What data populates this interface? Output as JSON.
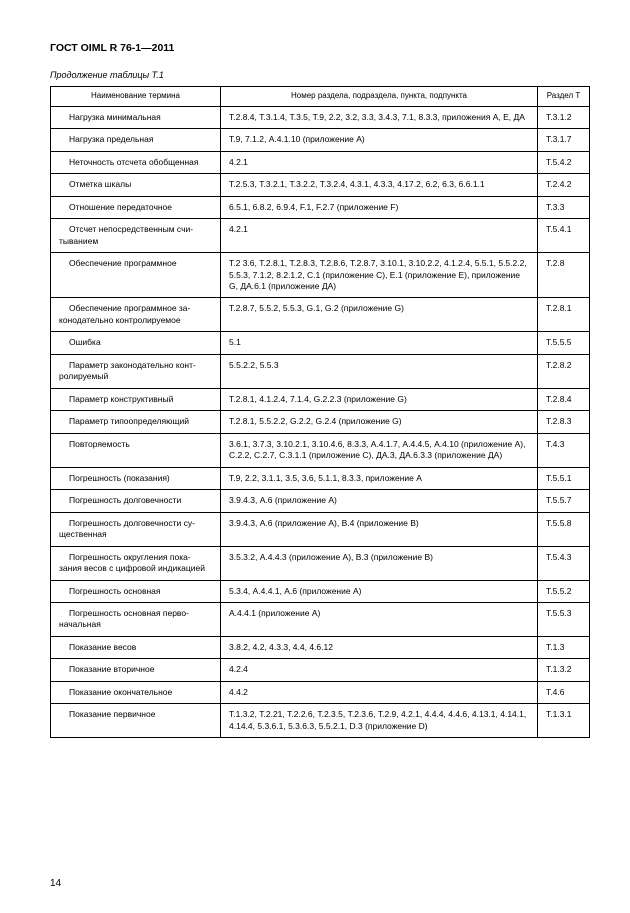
{
  "doc_title": "ГОСТ OIML R 76-1—2011",
  "table_caption": "Продолжение таблицы   Т.1",
  "headers": {
    "term": "Наименование термина",
    "ref": "Номер раздела, подраздела, пункта, подпункта",
    "sec": "Раздел Т"
  },
  "rows": [
    {
      "term_lines": [
        "Нагрузка минимальная"
      ],
      "ref": "Т.2.8.4, Т.3.1.4, Т.3.5, Т.9, 2.2, 3.2, 3.3, 3.4.3, 7.1, 8.3.3, приложения А, Е, ДА",
      "sec": "Т.3.1.2"
    },
    {
      "term_lines": [
        "Нагрузка предельная"
      ],
      "ref": "Т.9, 7.1.2, А.4.1.10 (приложение А)",
      "sec": "Т.3.1.7"
    },
    {
      "term_lines": [
        "Неточность отсчета обобщенная"
      ],
      "ref": "4.2.1",
      "sec": "Т.5.4.2"
    },
    {
      "term_lines": [
        "Отметка шкалы"
      ],
      "ref": "Т.2.5.3, Т.3.2.1, Т.3.2.2, Т.3.2.4, 4.3.1, 4.3.3, 4.17.2, 6.2, 6.3, 6.6.1.1",
      "sec": "Т.2.4.2"
    },
    {
      "term_lines": [
        "Отношение передаточное"
      ],
      "ref": "6.5.1, 6.8.2, 6.9.4,  F.1, F.2.7 (приложение F)",
      "sec": "Т.3.3"
    },
    {
      "term_lines": [
        "Отсчет непосредственным счи-",
        "тыванием"
      ],
      "ref": "4.2.1",
      "sec": "Т.5.4.1"
    },
    {
      "term_lines": [
        "Обеспечение программное"
      ],
      "ref": "Т.2 3.6, Т.2.8.1, Т.2.8.3, Т.2.8.6, Т.2.8.7, 3.10.1, 3.10.2.2, 4.1.2.4, 5.5.1, 5.5.2.2, 5.5.3, 7.1.2, 8.2.1.2, С.1 (приложение С), Е.1 (приложение Е), приложение G, ДА.6.1 (приложение ДА)",
      "sec": "Т.2.8"
    },
    {
      "term_lines": [
        "Обеспечение программное за-",
        "конодательно контролируемое"
      ],
      "ref": "Т.2.8.7, 5.5.2, 5.5.3, G.1, G.2 (приложение G)",
      "sec": "Т.2.8.1"
    },
    {
      "term_lines": [
        "Ошибка"
      ],
      "ref": "5.1",
      "sec": "Т.5.5.5"
    },
    {
      "term_lines": [
        "Параметр законодательно конт-",
        "ролируемый"
      ],
      "ref": "5.5.2.2, 5.5.3",
      "sec": "Т.2.8.2"
    },
    {
      "term_lines": [
        "Параметр конструктивный"
      ],
      "ref": "Т.2.8.1, 4.1.2.4, 7.1.4, G.2.2.3 (приложение G)",
      "sec": "Т.2.8.4"
    },
    {
      "term_lines": [
        "Параметр типоопределяющий"
      ],
      "ref": "Т.2.8.1, 5.5.2.2, G.2.2, G.2.4 (приложение G)",
      "sec": "Т.2.8.3"
    },
    {
      "term_lines": [
        "Повторяемость"
      ],
      "ref": "3.6.1, 3.7.3, 3.10.2.1, 3.10.4.6, 8.3.3, А.4.1.7, А.4.4.5, А.4.10 (приложение А), С.2.2, С.2.7, С.3.1.1 (приложение С), ДА.3, ДА.6.3.3 (приложение ДА)",
      "sec": "Т.4.3"
    },
    {
      "term_lines": [
        "Погрешность (показания)"
      ],
      "ref": "Т.9, 2.2, 3.1.1, 3.5, 3.6, 5.1.1, 8.3.3, приложение А",
      "sec": "Т.5.5.1"
    },
    {
      "term_lines": [
        "Погрешность долговечности"
      ],
      "ref": "3.9.4.3, А.6 (приложение А)",
      "sec": "Т.5.5.7"
    },
    {
      "term_lines": [
        "Погрешность долговечности су-",
        "щественная"
      ],
      "ref": "3.9.4.3, А.6 (приложение А), В.4 (приложение В)",
      "sec": "Т.5.5.8"
    },
    {
      "term_lines": [
        "Погрешность округления  пока-",
        "зания весов с цифровой индикацией"
      ],
      "ref": "3.5.3.2, А.4.4.3 (приложение А), В.3 (приложение В)",
      "sec": "Т.5.4.3"
    },
    {
      "term_lines": [
        "Погрешность основная"
      ],
      "ref": "5.3.4, А.4.4.1, А.6 (приложение А)",
      "sec": "Т.5.5.2"
    },
    {
      "term_lines": [
        "Погрешность основная перво-",
        "начальная"
      ],
      "ref": "А.4.4.1 (приложение А)",
      "sec": "Т.5.5.3"
    },
    {
      "term_lines": [
        "Показание весов"
      ],
      "ref": "3.8.2, 4.2, 4.3.3, 4.4, 4.6.12",
      "sec": "Т.1.3"
    },
    {
      "term_lines": [
        "Показание вторичное"
      ],
      "ref": "4.2.4",
      "sec": "Т.1.3.2"
    },
    {
      "term_lines": [
        "Показание окончательное"
      ],
      "ref": "4.4.2",
      "sec": "Т.4.6"
    },
    {
      "term_lines": [
        "Показание первичное"
      ],
      "ref": "Т.1.3.2, Т.2.21, Т.2.2.6, Т.2.3.5, Т.2.3.6, Т.2.9, 4.2.1, 4.4.4, 4.4.6, 4.13.1, 4.14.1, 4.14.4, 5.3.6.1, 5.3.6.3, 5.5.2.1, D.3 (приложение D)",
      "sec": "Т.1.3.1"
    }
  ],
  "page_number": "14"
}
